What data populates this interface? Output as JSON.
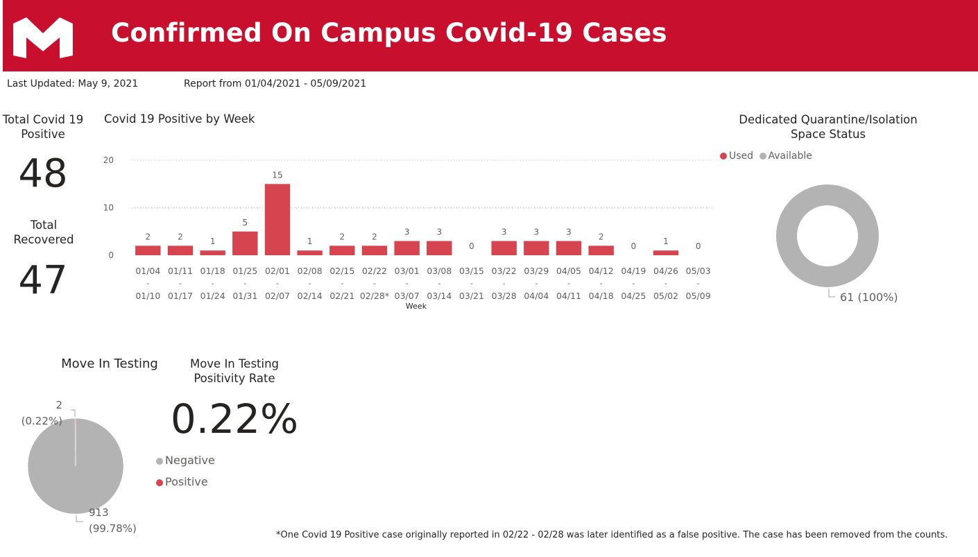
{
  "header": {
    "title": "Confirmed On Campus Covid-19 Cases",
    "logo_letter": "M",
    "color": "#c8102e"
  },
  "meta": {
    "last_updated": "Last Updated: May 9, 2021",
    "report_range": "Report from 01/04/2021 - 05/09/2021"
  },
  "kpis": {
    "total_positive_label": "Total Covid 19 Positive",
    "total_positive_value": "48",
    "total_recovered_label": "Total Recovered",
    "total_recovered_value": "47",
    "positivity_label": "Move In Testing Positivity Rate",
    "positivity_value": "0.22%"
  },
  "footnote": "*One Covid 19 Positive case originally reported in 02/22 - 02/28 was later identified as a false positive. The case has been removed from the counts.",
  "chart_data": [
    {
      "type": "bar",
      "title": "Covid 19 Positive by Week",
      "xlabel": "Week",
      "ylabel": "",
      "ylim": [
        0,
        20
      ],
      "yticks": [
        0,
        10,
        20
      ],
      "grid": true,
      "color": "#d6444f",
      "categories": [
        [
          "01/04",
          "-",
          "01/10"
        ],
        [
          "01/11",
          "-",
          "01/17"
        ],
        [
          "01/18",
          "-",
          "01/24"
        ],
        [
          "01/25",
          "-",
          "01/31"
        ],
        [
          "02/01",
          "-",
          "02/07"
        ],
        [
          "02/08",
          "-",
          "02/14"
        ],
        [
          "02/15",
          "-",
          "02/21"
        ],
        [
          "02/22",
          "-",
          "02/28*"
        ],
        [
          "03/01",
          "-",
          "03/07"
        ],
        [
          "03/08",
          "-",
          "03/14"
        ],
        [
          "03/15",
          "-",
          "03/21"
        ],
        [
          "03/22",
          "-",
          "03/28"
        ],
        [
          "03/29",
          "-",
          "04/04"
        ],
        [
          "04/05",
          "-",
          "04/11"
        ],
        [
          "04/12",
          "-",
          "04/18"
        ],
        [
          "04/19",
          "-",
          "04/25"
        ],
        [
          "04/26",
          "-",
          "05/02"
        ],
        [
          "05/03",
          "-",
          "05/09"
        ]
      ],
      "values": [
        2,
        2,
        1,
        5,
        15,
        1,
        2,
        2,
        3,
        3,
        0,
        3,
        3,
        3,
        2,
        0,
        1,
        0
      ]
    },
    {
      "type": "pie",
      "variant": "donut",
      "title": "Dedicated Quarantine/Isolation Space Status",
      "legend_position": "top-left",
      "slices": [
        {
          "name": "Used",
          "value": 0,
          "color": "#d6444f",
          "label": ""
        },
        {
          "name": "Available",
          "value": 61,
          "color": "#b3b3b3",
          "label": "61 (100%)"
        }
      ]
    },
    {
      "type": "pie",
      "title": "Move In Testing",
      "legend_position": "right",
      "slices": [
        {
          "name": "Negative",
          "value": 913,
          "color": "#b3b3b3",
          "label_value": "913",
          "label_pct": "(99.78%)"
        },
        {
          "name": "Positive",
          "value": 2,
          "color": "#d6444f",
          "label_value": "2",
          "label_pct": "(0.22%)"
        }
      ]
    }
  ]
}
